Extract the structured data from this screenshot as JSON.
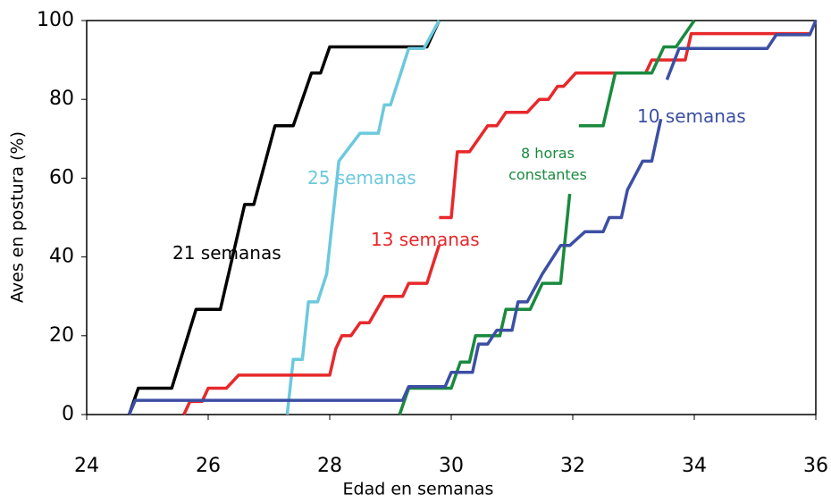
{
  "chart_data": {
    "type": "line",
    "xlabel": "Edad en semanas",
    "ylabel": "Aves en postura (%)",
    "xlim": [
      24,
      36
    ],
    "xticks": [
      24,
      26,
      28,
      30,
      32,
      34,
      36
    ],
    "ylim": [
      0,
      100
    ],
    "yticks": [
      0,
      20,
      40,
      60,
      80,
      100
    ],
    "series": [
      {
        "name": "21 semanas",
        "color": "#000000",
        "x": [
          24.7,
          24.85,
          25.4,
          25.8,
          26.2,
          26.6,
          26.75,
          27.1,
          27.4,
          27.7,
          27.85,
          28.0,
          29.6,
          29.8
        ],
        "values": [
          0,
          6.7,
          6.7,
          26.7,
          26.7,
          53.3,
          53.3,
          73.3,
          73.3,
          86.7,
          86.7,
          93.3,
          93.3,
          100
        ]
      },
      {
        "name": "25 semanas",
        "color": "#6cc9dd",
        "x": [
          27.3,
          27.4,
          27.55,
          27.65,
          27.8,
          27.95,
          28.1,
          28.15,
          28.5,
          28.8,
          28.9,
          29.0,
          29.3,
          29.55,
          29.8
        ],
        "values": [
          0,
          14,
          14,
          28.6,
          28.6,
          35.7,
          57,
          64.3,
          71.4,
          71.4,
          78.6,
          78.6,
          92.9,
          92.9,
          100
        ]
      },
      {
        "name": "13 semanas",
        "color": "#e8282b",
        "x": [
          25.6,
          25.7,
          25.9,
          26.0,
          26.3,
          26.5,
          28.0,
          28.1,
          28.2,
          28.35,
          28.5,
          28.65,
          28.9,
          29.2,
          29.3,
          29.6,
          29.8,
          29.8,
          29.8,
          30.0,
          30.1,
          30.3,
          30.6,
          30.75,
          30.9,
          31.25,
          31.45,
          31.6,
          31.75,
          31.85,
          32.05,
          33.2,
          33.3,
          33.85,
          33.95,
          35.9
        ],
        "values": [
          0,
          3.3,
          3.3,
          6.7,
          6.7,
          10,
          10,
          16.7,
          20,
          20,
          23.3,
          23.3,
          30,
          30,
          33.3,
          33.3,
          43,
          null,
          50,
          50,
          66.7,
          66.7,
          73.3,
          73.3,
          76.7,
          76.7,
          80,
          80,
          83.3,
          83.3,
          86.7,
          86.7,
          90,
          90,
          96.7,
          96.7
        ]
      },
      {
        "name": "8 horas constantes",
        "color": "#1a8a3e",
        "x": [
          29.15,
          29.3,
          30.0,
          30.15,
          30.3,
          30.4,
          30.8,
          30.9,
          31.3,
          31.5,
          31.8,
          31.95,
          32.1,
          32.1,
          32.5,
          32.7,
          33.3,
          33.5,
          33.7,
          34.0
        ],
        "values": [
          0,
          6.7,
          6.7,
          13.3,
          13.3,
          20,
          20,
          26.7,
          26.7,
          33.3,
          33.3,
          56,
          null,
          73.3,
          73.3,
          86.7,
          86.7,
          93.3,
          93.3,
          100
        ]
      },
      {
        "name": "10 semanas",
        "color": "#3c4fa3",
        "x": [
          24.7,
          24.8,
          29.2,
          29.3,
          29.9,
          30.0,
          30.35,
          30.45,
          30.6,
          30.75,
          31.0,
          31.1,
          31.25,
          31.5,
          31.8,
          31.95,
          32.2,
          32.5,
          32.6,
          32.8,
          32.9,
          33.15,
          33.3,
          33.45,
          33.5,
          33.55,
          33.75,
          35.2,
          35.35,
          35.9,
          36.0
        ],
        "values": [
          0,
          3.6,
          3.6,
          7.1,
          7.1,
          10.7,
          10.7,
          17.9,
          17.9,
          21.4,
          21.4,
          28.6,
          28.6,
          35.7,
          42.9,
          42.9,
          46.4,
          46.4,
          50,
          50,
          57,
          64.3,
          64.3,
          75,
          null,
          85,
          92.9,
          92.9,
          96.4,
          96.4,
          100
        ]
      }
    ]
  }
}
